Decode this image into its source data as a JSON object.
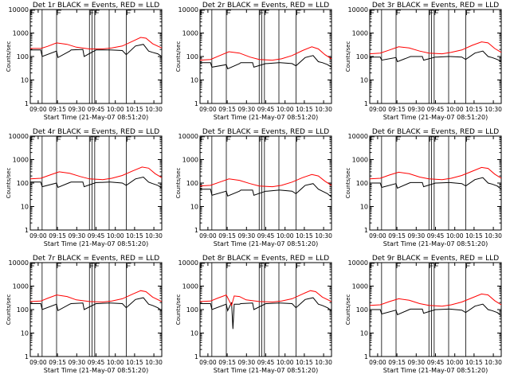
{
  "chart_data": [
    {
      "type": "line",
      "title": "Det 1r BLACK = Events, RED = LLD",
      "xlabel": "Start Time (21-May-07 08:51:20)",
      "ylabel": "Counts/sec",
      "xticks": [
        "09:00",
        "09:15",
        "09:30",
        "09:45",
        "10:00",
        "10:15",
        "10:30"
      ],
      "yticks": [
        "1",
        "10",
        "100",
        "1000",
        "10000"
      ],
      "ylim": [
        1,
        10000
      ],
      "yscale": "log",
      "series": [
        {
          "color": "#000000",
          "x": [
            0,
            0.08,
            0.09,
            0.2,
            0.21,
            0.3,
            0.31,
            0.4,
            0.41,
            0.5,
            0.51,
            0.6,
            0.61,
            0.7,
            0.73,
            0.8,
            0.86,
            0.9,
            0.93,
            0.97,
            1
          ],
          "values": [
            190,
            190,
            100,
            170,
            90,
            170,
            190,
            200,
            100,
            190,
            190,
            190,
            190,
            180,
            120,
            280,
            330,
            170,
            150,
            130,
            100
          ]
        },
        {
          "color": "#ff0000",
          "x": [
            0,
            0.08,
            0.13,
            0.2,
            0.28,
            0.35,
            0.45,
            0.55,
            0.62,
            0.7,
            0.78,
            0.84,
            0.88,
            0.93,
            1
          ],
          "values": [
            220,
            220,
            270,
            380,
            330,
            250,
            210,
            210,
            230,
            280,
            450,
            650,
            600,
            350,
            230
          ]
        }
      ]
    },
    {
      "type": "line",
      "title": "Det 2r BLACK = Events, RED = LLD",
      "xlabel": "Start Time (21-May-07 08:51:20)",
      "ylabel": "Counts/sec",
      "xticks": [
        "09:00",
        "09:15",
        "09:30",
        "09:45",
        "10:00",
        "10:15",
        "10:30"
      ],
      "yticks": [
        "1",
        "10",
        "100",
        "1000",
        "10000"
      ],
      "ylim": [
        1,
        10000
      ],
      "yscale": "log",
      "series": [
        {
          "color": "#000000",
          "x": [
            0,
            0.08,
            0.09,
            0.2,
            0.21,
            0.3,
            0.31,
            0.4,
            0.41,
            0.5,
            0.51,
            0.6,
            0.61,
            0.7,
            0.73,
            0.8,
            0.86,
            0.9,
            0.93,
            0.97,
            1
          ],
          "values": [
            55,
            55,
            35,
            45,
            30,
            50,
            55,
            55,
            35,
            50,
            50,
            55,
            55,
            50,
            40,
            90,
            110,
            60,
            55,
            45,
            35
          ]
        },
        {
          "color": "#ff0000",
          "x": [
            0,
            0.08,
            0.15,
            0.22,
            0.3,
            0.38,
            0.45,
            0.55,
            0.62,
            0.7,
            0.78,
            0.85,
            0.9,
            0.95,
            1
          ],
          "values": [
            70,
            75,
            110,
            160,
            140,
            95,
            75,
            70,
            80,
            110,
            180,
            260,
            210,
            120,
            80
          ]
        }
      ]
    },
    {
      "type": "line",
      "title": "Det 3r BLACK = Events, RED = LLD",
      "xlabel": "Start Time (21-May-07 08:51:20)",
      "ylabel": "Counts/sec",
      "xticks": [
        "09:00",
        "09:15",
        "09:30",
        "09:45",
        "10:00",
        "10:15",
        "10:30"
      ],
      "yticks": [
        "1",
        "10",
        "100",
        "1000",
        "10000"
      ],
      "ylim": [
        1,
        10000
      ],
      "yscale": "log",
      "series": [
        {
          "color": "#000000",
          "x": [
            0,
            0.08,
            0.09,
            0.2,
            0.21,
            0.3,
            0.31,
            0.4,
            0.41,
            0.5,
            0.51,
            0.6,
            0.61,
            0.7,
            0.73,
            0.8,
            0.86,
            0.9,
            0.93,
            0.97,
            1
          ],
          "values": [
            95,
            95,
            70,
            90,
            60,
            95,
            100,
            100,
            70,
            95,
            95,
            100,
            100,
            95,
            75,
            140,
            170,
            100,
            90,
            75,
            60
          ]
        },
        {
          "color": "#ff0000",
          "x": [
            0,
            0.08,
            0.15,
            0.22,
            0.3,
            0.38,
            0.45,
            0.55,
            0.62,
            0.7,
            0.78,
            0.85,
            0.9,
            0.95,
            1
          ],
          "values": [
            130,
            140,
            190,
            260,
            230,
            170,
            140,
            130,
            150,
            190,
            300,
            420,
            380,
            220,
            150
          ]
        }
      ]
    },
    {
      "type": "line",
      "title": "Det 4r BLACK = Events, RED = LLD",
      "xlabel": "Start Time (21-May-07 08:51:20)",
      "ylabel": "Counts/sec",
      "xticks": [
        "09:00",
        "09:15",
        "09:30",
        "09:45",
        "10:00",
        "10:15",
        "10:30"
      ],
      "yticks": [
        "1",
        "10",
        "100",
        "1000",
        "10000"
      ],
      "ylim": [
        1,
        10000
      ],
      "yscale": "log",
      "series": [
        {
          "color": "#000000",
          "x": [
            0,
            0.08,
            0.09,
            0.2,
            0.21,
            0.3,
            0.31,
            0.4,
            0.41,
            0.5,
            0.51,
            0.6,
            0.61,
            0.7,
            0.73,
            0.8,
            0.86,
            0.9,
            0.93,
            0.97,
            1
          ],
          "values": [
            110,
            110,
            70,
            100,
            65,
            105,
            110,
            110,
            70,
            105,
            105,
            110,
            110,
            100,
            80,
            150,
            180,
            110,
            95,
            80,
            60
          ]
        },
        {
          "color": "#ff0000",
          "x": [
            0,
            0.08,
            0.15,
            0.22,
            0.3,
            0.38,
            0.45,
            0.55,
            0.62,
            0.7,
            0.78,
            0.85,
            0.9,
            0.95,
            1
          ],
          "values": [
            150,
            160,
            220,
            300,
            260,
            190,
            150,
            140,
            160,
            210,
            330,
            480,
            430,
            250,
            170
          ]
        }
      ]
    },
    {
      "type": "line",
      "title": "Det 5r BLACK = Events, RED = LLD",
      "xlabel": "Start Time (21-May-07 08:51:20)",
      "ylabel": "Counts/sec",
      "xticks": [
        "09:00",
        "09:15",
        "09:30",
        "09:45",
        "10:00",
        "10:15",
        "10:30"
      ],
      "yticks": [
        "1",
        "10",
        "100",
        "1000",
        "10000"
      ],
      "ylim": [
        1,
        10000
      ],
      "yscale": "log",
      "series": [
        {
          "color": "#000000",
          "x": [
            0,
            0.08,
            0.09,
            0.2,
            0.21,
            0.3,
            0.31,
            0.4,
            0.41,
            0.5,
            0.51,
            0.6,
            0.61,
            0.7,
            0.73,
            0.8,
            0.86,
            0.9,
            0.93,
            0.97,
            1
          ],
          "values": [
            55,
            55,
            30,
            45,
            28,
            45,
            50,
            50,
            30,
            45,
            45,
            50,
            50,
            45,
            35,
            80,
            95,
            55,
            45,
            35,
            25
          ]
        },
        {
          "color": "#ff0000",
          "x": [
            0,
            0.08,
            0.15,
            0.22,
            0.3,
            0.38,
            0.45,
            0.55,
            0.62,
            0.7,
            0.78,
            0.85,
            0.9,
            0.95,
            1
          ],
          "values": [
            75,
            80,
            110,
            150,
            130,
            95,
            75,
            70,
            80,
            110,
            170,
            230,
            200,
            120,
            80
          ]
        }
      ]
    },
    {
      "type": "line",
      "title": "Det 6r BLACK = Events, RED = LLD",
      "xlabel": "Start Time (21-May-07 08:51:20)",
      "ylabel": "Counts/sec",
      "xticks": [
        "09:00",
        "09:15",
        "09:30",
        "09:45",
        "10:00",
        "10:15",
        "10:30"
      ],
      "yticks": [
        "1",
        "10",
        "100",
        "1000",
        "10000"
      ],
      "ylim": [
        1,
        10000
      ],
      "yscale": "log",
      "series": [
        {
          "color": "#000000",
          "x": [
            0,
            0.08,
            0.09,
            0.2,
            0.21,
            0.3,
            0.31,
            0.4,
            0.41,
            0.5,
            0.51,
            0.6,
            0.61,
            0.7,
            0.73,
            0.8,
            0.86,
            0.9,
            0.93,
            0.97,
            1
          ],
          "values": [
            100,
            100,
            65,
            95,
            60,
            100,
            105,
            105,
            70,
            100,
            100,
            105,
            105,
            95,
            75,
            140,
            170,
            100,
            90,
            75,
            55
          ]
        },
        {
          "color": "#ff0000",
          "x": [
            0,
            0.08,
            0.15,
            0.22,
            0.3,
            0.38,
            0.45,
            0.55,
            0.62,
            0.7,
            0.78,
            0.85,
            0.9,
            0.95,
            1
          ],
          "values": [
            150,
            160,
            220,
            290,
            250,
            180,
            150,
            140,
            160,
            210,
            320,
            460,
            420,
            240,
            160
          ]
        }
      ]
    },
    {
      "type": "line",
      "title": "Det 7r BLACK = Events, RED = LLD",
      "xlabel": "Start Time (21-May-07 08:51:20)",
      "ylabel": "Counts/sec",
      "xticks": [
        "09:00",
        "09:15",
        "09:30",
        "09:45",
        "10:00",
        "10:15",
        "10:30"
      ],
      "yticks": [
        "1",
        "10",
        "100",
        "1000",
        "10000"
      ],
      "ylim": [
        1,
        10000
      ],
      "yscale": "log",
      "series": [
        {
          "color": "#000000",
          "x": [
            0,
            0.08,
            0.09,
            0.2,
            0.21,
            0.3,
            0.31,
            0.4,
            0.41,
            0.5,
            0.51,
            0.6,
            0.61,
            0.7,
            0.73,
            0.8,
            0.86,
            0.9,
            0.93,
            0.97,
            1
          ],
          "values": [
            180,
            180,
            100,
            170,
            90,
            170,
            180,
            190,
            100,
            180,
            180,
            190,
            190,
            180,
            120,
            270,
            320,
            170,
            150,
            120,
            90
          ]
        },
        {
          "color": "#ff0000",
          "x": [
            0,
            0.08,
            0.13,
            0.2,
            0.28,
            0.35,
            0.45,
            0.55,
            0.62,
            0.7,
            0.78,
            0.84,
            0.88,
            0.93,
            1
          ],
          "values": [
            220,
            230,
            300,
            420,
            360,
            260,
            220,
            210,
            230,
            290,
            460,
            640,
            580,
            340,
            220
          ]
        }
      ]
    },
    {
      "type": "line",
      "title": "Det 8r BLACK = Events, RED = LLD",
      "xlabel": "Start Time (21-May-07 08:51:20)",
      "ylabel": "Counts/sec",
      "xticks": [
        "09:00",
        "09:15",
        "09:30",
        "09:45",
        "10:00",
        "10:15",
        "10:30"
      ],
      "yticks": [
        "1",
        "10",
        "100",
        "1000",
        "10000"
      ],
      "ylim": [
        1,
        10000
      ],
      "yscale": "log",
      "series": [
        {
          "color": "#000000",
          "x": [
            0,
            0.08,
            0.09,
            0.2,
            0.21,
            0.24,
            0.25,
            0.26,
            0.3,
            0.31,
            0.4,
            0.41,
            0.5,
            0.51,
            0.6,
            0.61,
            0.7,
            0.73,
            0.8,
            0.86,
            0.9,
            0.93,
            0.97,
            1
          ],
          "values": [
            180,
            180,
            100,
            170,
            90,
            200,
            15,
            170,
            170,
            180,
            190,
            100,
            180,
            180,
            190,
            190,
            180,
            120,
            270,
            320,
            170,
            150,
            120,
            90
          ]
        },
        {
          "color": "#ff0000",
          "x": [
            0,
            0.08,
            0.13,
            0.2,
            0.24,
            0.26,
            0.3,
            0.35,
            0.45,
            0.55,
            0.62,
            0.7,
            0.78,
            0.84,
            0.88,
            0.93,
            1
          ],
          "values": [
            220,
            230,
            300,
            420,
            150,
            380,
            360,
            260,
            220,
            210,
            230,
            290,
            460,
            640,
            580,
            340,
            220
          ]
        }
      ]
    },
    {
      "type": "line",
      "title": "Det 9r BLACK = Events, RED = LLD",
      "xlabel": "Start Time (21-May-07 08:51:20)",
      "ylabel": "Counts/sec",
      "xticks": [
        "09:00",
        "09:15",
        "09:30",
        "09:45",
        "10:00",
        "10:15",
        "10:30"
      ],
      "yticks": [
        "1",
        "10",
        "100",
        "1000",
        "10000"
      ],
      "ylim": [
        1,
        10000
      ],
      "yscale": "log",
      "series": [
        {
          "color": "#000000",
          "x": [
            0,
            0.08,
            0.09,
            0.2,
            0.21,
            0.3,
            0.31,
            0.4,
            0.41,
            0.5,
            0.51,
            0.6,
            0.61,
            0.7,
            0.73,
            0.8,
            0.86,
            0.9,
            0.93,
            0.97,
            1
          ],
          "values": [
            100,
            100,
            65,
            95,
            60,
            100,
            105,
            105,
            70,
            100,
            100,
            105,
            105,
            95,
            75,
            140,
            170,
            100,
            90,
            75,
            55
          ]
        },
        {
          "color": "#ff0000",
          "x": [
            0,
            0.08,
            0.15,
            0.22,
            0.3,
            0.38,
            0.45,
            0.55,
            0.62,
            0.7,
            0.78,
            0.85,
            0.9,
            0.95,
            1
          ],
          "values": [
            150,
            160,
            220,
            290,
            250,
            180,
            150,
            140,
            160,
            210,
            320,
            460,
            420,
            240,
            160
          ]
        }
      ]
    }
  ]
}
